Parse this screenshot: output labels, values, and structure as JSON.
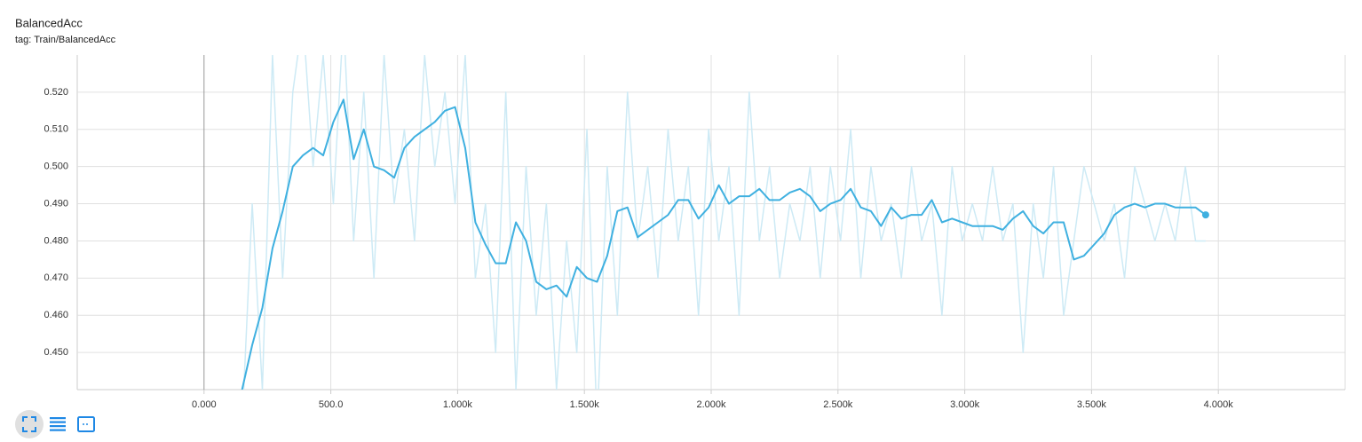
{
  "chart_data": {
    "type": "line",
    "title": "BalancedAcc",
    "subtitle": "tag: Train/BalancedAcc",
    "x": [
      150,
      190,
      230,
      270,
      310,
      350,
      390,
      430,
      470,
      510,
      550,
      590,
      630,
      670,
      710,
      750,
      790,
      830,
      870,
      910,
      950,
      990,
      1030,
      1070,
      1110,
      1150,
      1190,
      1230,
      1270,
      1310,
      1350,
      1390,
      1430,
      1470,
      1510,
      1550,
      1590,
      1630,
      1670,
      1710,
      1750,
      1790,
      1830,
      1870,
      1910,
      1950,
      1990,
      2030,
      2070,
      2110,
      2150,
      2190,
      2230,
      2270,
      2310,
      2350,
      2390,
      2430,
      2470,
      2510,
      2550,
      2590,
      2630,
      2670,
      2710,
      2750,
      2790,
      2830,
      2870,
      2910,
      2950,
      2990,
      3030,
      3070,
      3110,
      3150,
      3190,
      3230,
      3270,
      3310,
      3350,
      3390,
      3430,
      3470,
      3510,
      3550,
      3590,
      3630,
      3670,
      3710,
      3750,
      3790,
      3830,
      3870,
      3910,
      3950
    ],
    "series": [
      {
        "color": "#cdeaf5",
        "values": [
          0.43,
          0.49,
          0.44,
          0.53,
          0.47,
          0.52,
          0.54,
          0.5,
          0.53,
          0.49,
          0.54,
          0.48,
          0.52,
          0.47,
          0.53,
          0.49,
          0.51,
          0.48,
          0.53,
          0.5,
          0.52,
          0.49,
          0.53,
          0.47,
          0.49,
          0.45,
          0.52,
          0.44,
          0.5,
          0.46,
          0.49,
          0.44,
          0.48,
          0.45,
          0.51,
          0.43,
          0.5,
          0.46,
          0.52,
          0.48,
          0.5,
          0.47,
          0.51,
          0.48,
          0.5,
          0.46,
          0.51,
          0.48,
          0.5,
          0.46,
          0.52,
          0.48,
          0.5,
          0.47,
          0.49,
          0.48,
          0.5,
          0.47,
          0.5,
          0.48,
          0.51,
          0.47,
          0.5,
          0.48,
          0.49,
          0.47,
          0.5,
          0.48,
          0.49,
          0.46,
          0.5,
          0.48,
          0.49,
          0.48,
          0.5,
          0.48,
          0.49,
          0.45,
          0.49,
          0.47,
          0.5,
          0.46,
          0.48,
          0.5,
          0.49,
          0.48,
          0.49,
          0.47,
          0.5,
          0.49,
          0.48,
          0.49,
          0.48,
          0.5,
          0.48,
          0.48
        ]
      },
      {
        "color": "#3fb0e0",
        "values": [
          0.44,
          0.452,
          0.462,
          0.478,
          0.488,
          0.5,
          0.503,
          0.505,
          0.503,
          0.512,
          0.518,
          0.502,
          0.51,
          0.5,
          0.499,
          0.497,
          0.505,
          0.508,
          0.51,
          0.512,
          0.515,
          0.516,
          0.505,
          0.485,
          0.479,
          0.474,
          0.474,
          0.485,
          0.48,
          0.469,
          0.467,
          0.468,
          0.465,
          0.473,
          0.47,
          0.469,
          0.476,
          0.488,
          0.489,
          0.481,
          0.483,
          0.485,
          0.487,
          0.491,
          0.491,
          0.486,
          0.489,
          0.495,
          0.49,
          0.492,
          0.492,
          0.494,
          0.491,
          0.491,
          0.493,
          0.494,
          0.492,
          0.488,
          0.49,
          0.491,
          0.494,
          0.489,
          0.488,
          0.484,
          0.489,
          0.486,
          0.487,
          0.487,
          0.491,
          0.485,
          0.486,
          0.485,
          0.484,
          0.484,
          0.484,
          0.483,
          0.486,
          0.488,
          0.484,
          0.482,
          0.485,
          0.485,
          0.475,
          0.476,
          0.479,
          0.482,
          0.487,
          0.489,
          0.49,
          0.489,
          0.49,
          0.49,
          0.489,
          0.489,
          0.489,
          0.487
        ]
      }
    ],
    "xlim": [
      -500,
      4500
    ],
    "ylim": [
      0.44,
      0.53
    ],
    "xticks": [
      {
        "value": 0,
        "label": "0.000"
      },
      {
        "value": 500,
        "label": "500.0"
      },
      {
        "value": 1000,
        "label": "1.000k"
      },
      {
        "value": 1500,
        "label": "1.500k"
      },
      {
        "value": 2000,
        "label": "2.000k"
      },
      {
        "value": 2500,
        "label": "2.500k"
      },
      {
        "value": 3000,
        "label": "3.000k"
      },
      {
        "value": 3500,
        "label": "3.500k"
      },
      {
        "value": 4000,
        "label": "4.000k"
      }
    ],
    "yticks": [
      {
        "value": 0.45,
        "label": "0.450"
      },
      {
        "value": 0.46,
        "label": "0.460"
      },
      {
        "value": 0.47,
        "label": "0.470"
      },
      {
        "value": 0.48,
        "label": "0.480"
      },
      {
        "value": 0.49,
        "label": "0.490"
      },
      {
        "value": 0.5,
        "label": "0.500"
      },
      {
        "value": 0.51,
        "label": "0.510"
      },
      {
        "value": 0.52,
        "label": "0.520"
      }
    ],
    "grid": true
  }
}
